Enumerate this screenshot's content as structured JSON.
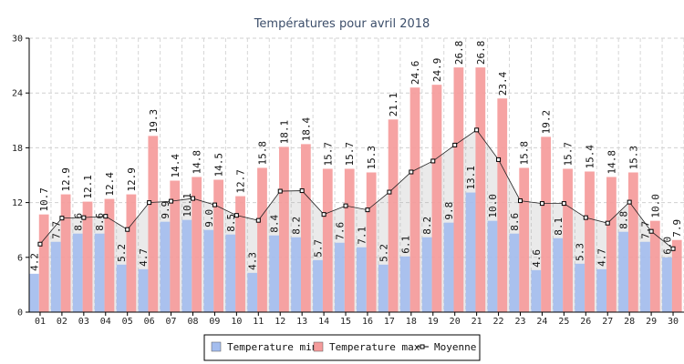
{
  "chart_data": {
    "type": "bar",
    "title": "Températures pour avril 2018",
    "categories": [
      "01",
      "02",
      "03",
      "04",
      "05",
      "06",
      "07",
      "08",
      "09",
      "10",
      "11",
      "12",
      "13",
      "14",
      "15",
      "16",
      "17",
      "18",
      "19",
      "20",
      "21",
      "22",
      "23",
      "24",
      "25",
      "26",
      "27",
      "28",
      "29",
      "30"
    ],
    "series": [
      {
        "name": "Temperature min",
        "type": "bar",
        "color": "#a4bdee",
        "values": [
          4.2,
          7.7,
          8.6,
          8.6,
          5.2,
          4.7,
          9.9,
          10.1,
          9.0,
          8.5,
          4.3,
          8.4,
          8.2,
          5.7,
          7.6,
          7.1,
          5.2,
          6.1,
          8.2,
          9.8,
          13.1,
          10.0,
          8.6,
          4.6,
          8.1,
          5.3,
          4.7,
          8.8,
          7.7,
          6.0
        ]
      },
      {
        "name": "Temperature max",
        "type": "bar",
        "color": "#f59b9b",
        "values": [
          10.7,
          12.9,
          12.1,
          12.4,
          12.9,
          19.3,
          14.4,
          14.8,
          14.5,
          12.7,
          15.8,
          18.1,
          18.4,
          15.7,
          15.7,
          15.3,
          21.1,
          24.6,
          24.9,
          26.8,
          26.8,
          23.4,
          15.8,
          19.2,
          15.7,
          15.4,
          14.8,
          15.3,
          10.0,
          7.9
        ]
      },
      {
        "name": "Moyenne",
        "type": "line",
        "color": "#000000",
        "values": [
          7.45,
          10.3,
          10.35,
          10.5,
          9.05,
          12.0,
          12.15,
          12.45,
          11.75,
          10.6,
          10.05,
          13.25,
          13.3,
          10.7,
          11.65,
          11.2,
          13.15,
          15.35,
          16.55,
          18.3,
          19.95,
          16.7,
          12.2,
          11.9,
          11.9,
          10.35,
          9.75,
          12.05,
          8.85,
          6.95
        ]
      }
    ],
    "ylim": [
      0,
      30
    ],
    "yticks": [
      0,
      6,
      12,
      18,
      24,
      30
    ],
    "grid": true,
    "legend_position": "bottom-center"
  }
}
